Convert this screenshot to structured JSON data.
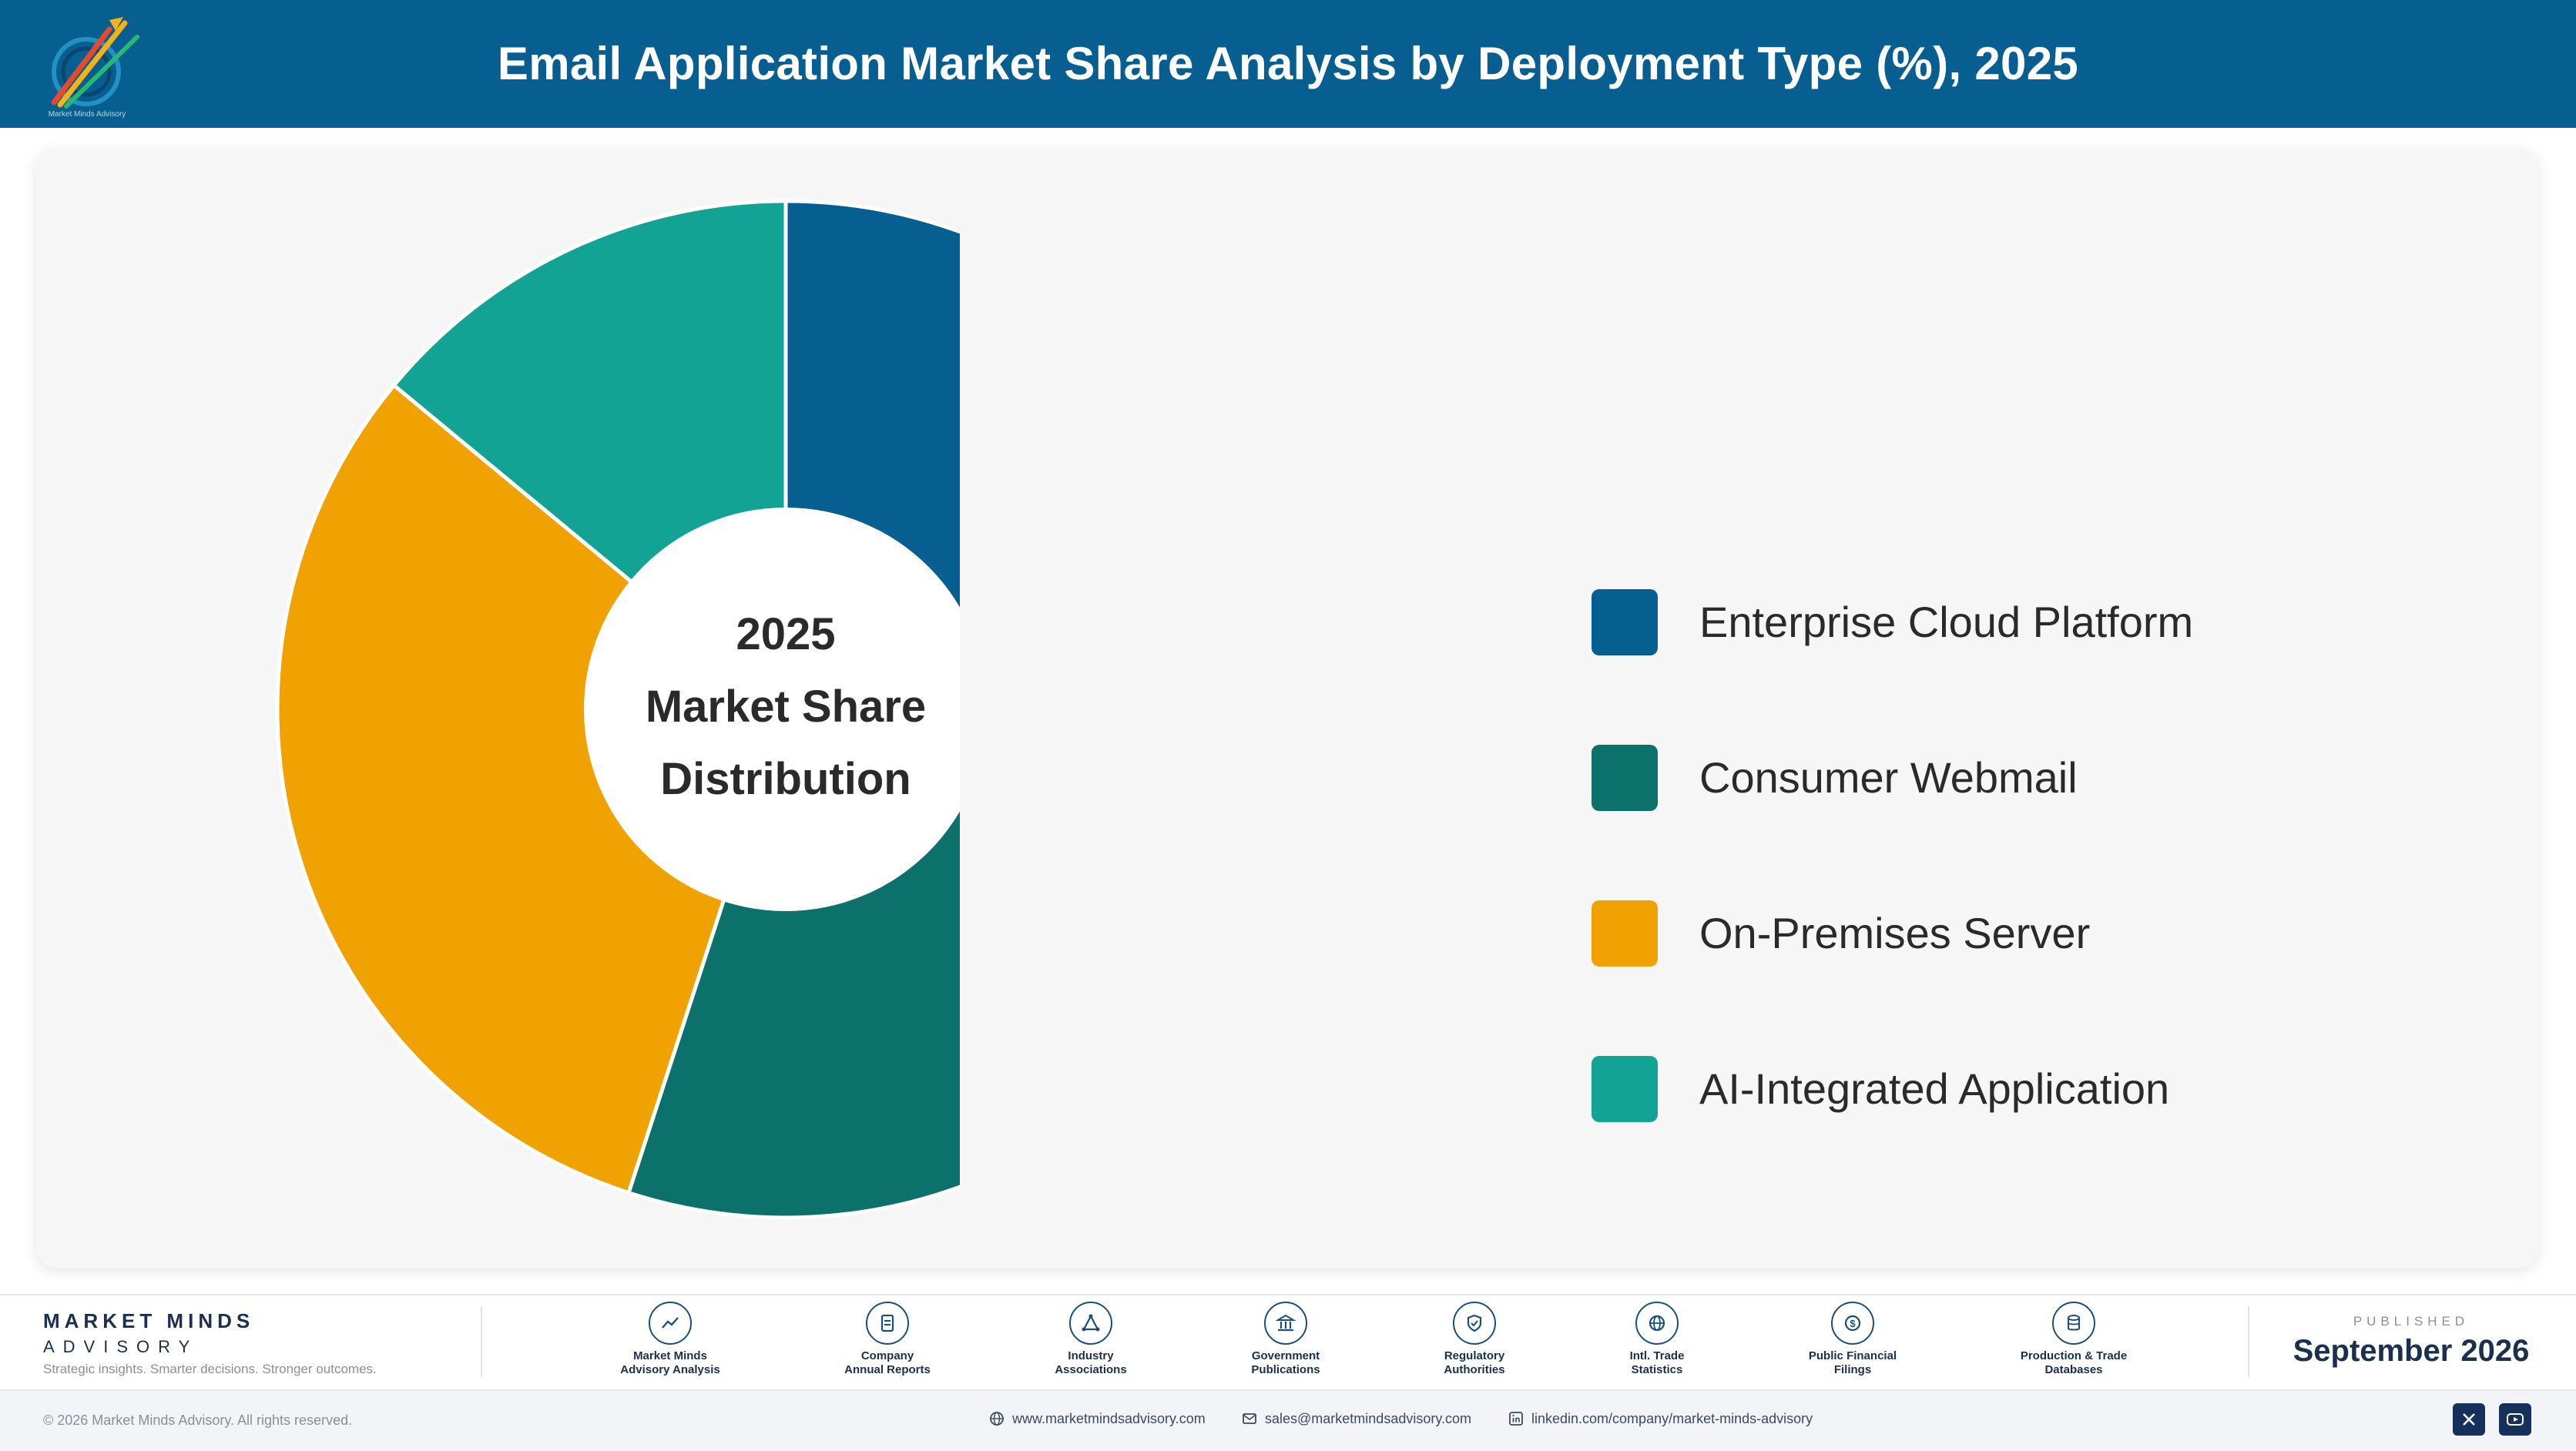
{
  "header": {
    "title": "Email Application Market Share Analysis by Deployment Type (%), 2025",
    "logo_caption": "Market Minds Advisory"
  },
  "chart_data": {
    "type": "pie",
    "title": "Email Application Market Share Analysis by Deployment Type (%), 2025",
    "center_label": [
      "2025",
      "Market Share",
      "Distribution"
    ],
    "categories": [
      "Enterprise Cloud Platform",
      "Consumer Webmail",
      "On-Premises Server",
      "AI-Integrated Application"
    ],
    "values": [
      26,
      29,
      31,
      14
    ],
    "colors": [
      "#075e91",
      "#0c716b",
      "#f0a202",
      "#12a394"
    ],
    "legend_position": "right"
  },
  "footer": {
    "brand_name": "MARKET MINDS",
    "brand_sub": "ADVISORY",
    "tagline": "Strategic insights. Smarter decisions. Stronger outcomes.",
    "sources": [
      {
        "label": "Market Minds\nAdvisory Analysis",
        "icon": "chart-line-icon"
      },
      {
        "label": "Company\nAnnual Reports",
        "icon": "document-icon"
      },
      {
        "label": "Industry\nAssociations",
        "icon": "network-icon"
      },
      {
        "label": "Government\nPublications",
        "icon": "bank-icon"
      },
      {
        "label": "Regulatory\nAuthorities",
        "icon": "shield-check-icon"
      },
      {
        "label": "Intl. Trade\nStatistics",
        "icon": "globe-icon"
      },
      {
        "label": "Public Financial\nFilings",
        "icon": "coin-icon"
      },
      {
        "label": "Production & Trade\nDatabases",
        "icon": "database-icon"
      }
    ],
    "published_label": "PUBLISHED",
    "published_date": "September 2026",
    "copyright": "© 2026 Market Minds Advisory. All rights reserved.",
    "website": "www.marketmindsadvisory.com",
    "email": "sales@marketmindsadvisory.com",
    "linkedin": "linkedin.com/company/market-minds-advisory"
  }
}
